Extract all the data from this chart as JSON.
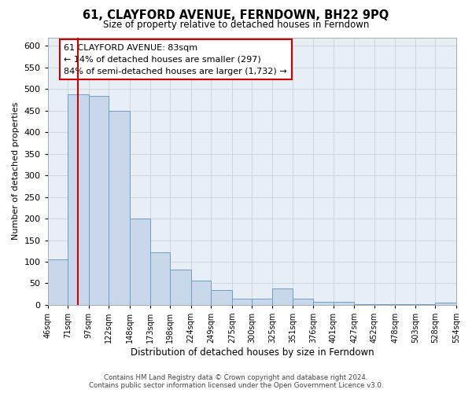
{
  "title": "61, CLAYFORD AVENUE, FERNDOWN, BH22 9PQ",
  "subtitle": "Size of property relative to detached houses in Ferndown",
  "xlabel": "Distribution of detached houses by size in Ferndown",
  "ylabel": "Number of detached properties",
  "bin_edges": [
    46,
    71,
    97,
    122,
    148,
    173,
    198,
    224,
    249,
    275,
    300,
    325,
    351,
    376,
    401,
    427,
    452,
    478,
    503,
    528,
    554
  ],
  "bin_labels": [
    "46sqm",
    "71sqm",
    "97sqm",
    "122sqm",
    "148sqm",
    "173sqm",
    "198sqm",
    "224sqm",
    "249sqm",
    "275sqm",
    "300sqm",
    "325sqm",
    "351sqm",
    "376sqm",
    "401sqm",
    "427sqm",
    "452sqm",
    "478sqm",
    "503sqm",
    "528sqm",
    "554sqm"
  ],
  "counts": [
    105,
    488,
    485,
    450,
    200,
    122,
    82,
    57,
    35,
    15,
    15,
    38,
    15,
    8,
    8,
    2,
    2,
    2,
    2,
    5
  ],
  "bar_color": "#c8d8ea",
  "bar_edge_color": "#6a9fc8",
  "property_size": 83,
  "annotation_line1": "61 CLAYFORD AVENUE: 83sqm",
  "annotation_line2": "← 14% of detached houses are smaller (297)",
  "annotation_line3": "84% of semi-detached houses are larger (1,732) →",
  "annotation_box_color": "#ffffff",
  "annotation_box_edge": "#cc0000",
  "ylim": [
    0,
    620
  ],
  "yticks": [
    0,
    50,
    100,
    150,
    200,
    250,
    300,
    350,
    400,
    450,
    500,
    550,
    600
  ],
  "footer_line1": "Contains HM Land Registry data © Crown copyright and database right 2024.",
  "footer_line2": "Contains public sector information licensed under the Open Government Licence v3.0.",
  "bg_color": "#e8eef5",
  "fig_width": 6.0,
  "fig_height": 5.0,
  "dpi": 100
}
